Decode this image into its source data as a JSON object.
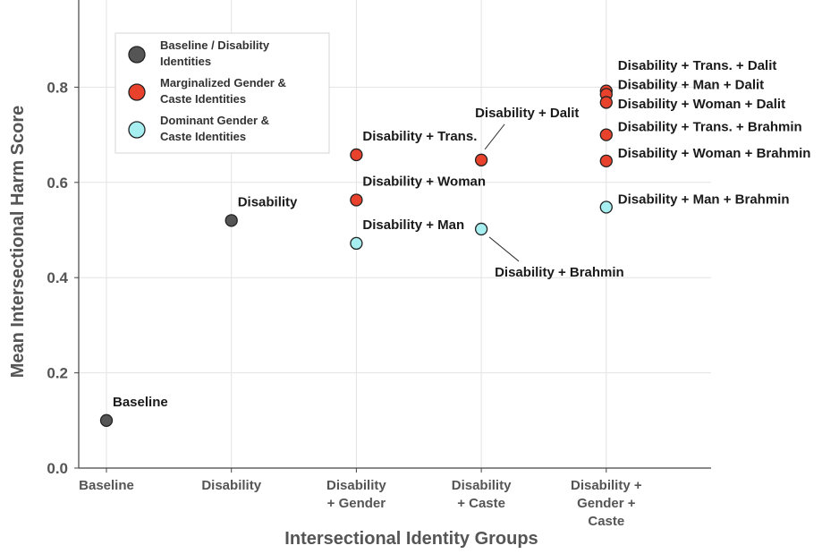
{
  "chart_data": {
    "type": "scatter",
    "title": "",
    "xlabel": "Intersectional Identity Groups",
    "ylabel": "Mean Intersectional Harm Score",
    "ylim": [
      0.0,
      0.96
    ],
    "yticks": [
      "0.0",
      "0.2",
      "0.4",
      "0.6",
      "0.8"
    ],
    "ytick_values": [
      0.0,
      0.2,
      0.4,
      0.6,
      0.8
    ],
    "categories": [
      [
        "Baseline"
      ],
      [
        "Disability"
      ],
      [
        "Disability",
        "+ Gender"
      ],
      [
        "Disability",
        "+ Caste"
      ],
      [
        "Disability +",
        "Gender +",
        "Caste"
      ]
    ],
    "grid": true,
    "legend_position": "top-left",
    "legend": [
      {
        "lines": [
          "Baseline / Disability",
          "Identities"
        ],
        "color": "#555555"
      },
      {
        "lines": [
          "Marginalized Gender &",
          "Caste Identities"
        ],
        "color": "#e8412c"
      },
      {
        "lines": [
          "Dominant Gender &",
          "Caste Identities"
        ],
        "color": "#a6eef0"
      }
    ],
    "points": [
      {
        "x": 0,
        "y": 0.1,
        "group": 0,
        "label": "Baseline",
        "pos": "ur"
      },
      {
        "x": 1,
        "y": 0.52,
        "group": 0,
        "label": "Disability",
        "pos": "ur"
      },
      {
        "x": 2,
        "y": 0.658,
        "group": 1,
        "label": "Disability + Trans.",
        "pos": "ur"
      },
      {
        "x": 2,
        "y": 0.563,
        "group": 1,
        "label": "Disability + Woman",
        "pos": "ur"
      },
      {
        "x": 2,
        "y": 0.472,
        "group": 2,
        "label": "Disability + Man",
        "pos": "ur"
      },
      {
        "x": 3,
        "y": 0.647,
        "group": 1,
        "label": "Disability + Dalit",
        "pos": "leader-up"
      },
      {
        "x": 3,
        "y": 0.502,
        "group": 2,
        "label": "Disability + Brahmin",
        "pos": "leader-down"
      },
      {
        "x": 4,
        "y": 0.792,
        "group": 1,
        "label": "Disability + Trans. + Dalit",
        "pos": "stack"
      },
      {
        "x": 4,
        "y": 0.785,
        "group": 1,
        "label": "Disability + Man + Dalit",
        "pos": "stack"
      },
      {
        "x": 4,
        "y": 0.768,
        "group": 1,
        "label": "Disability + Woman + Dalit",
        "pos": "stack"
      },
      {
        "x": 4,
        "y": 0.7,
        "group": 1,
        "label": "Disability + Trans. + Brahmin",
        "pos": "right"
      },
      {
        "x": 4,
        "y": 0.645,
        "group": 1,
        "label": "Disability + Woman + Brahmin",
        "pos": "right"
      },
      {
        "x": 4,
        "y": 0.548,
        "group": 2,
        "label": "Disability + Man + Brahmin",
        "pos": "right"
      }
    ]
  }
}
